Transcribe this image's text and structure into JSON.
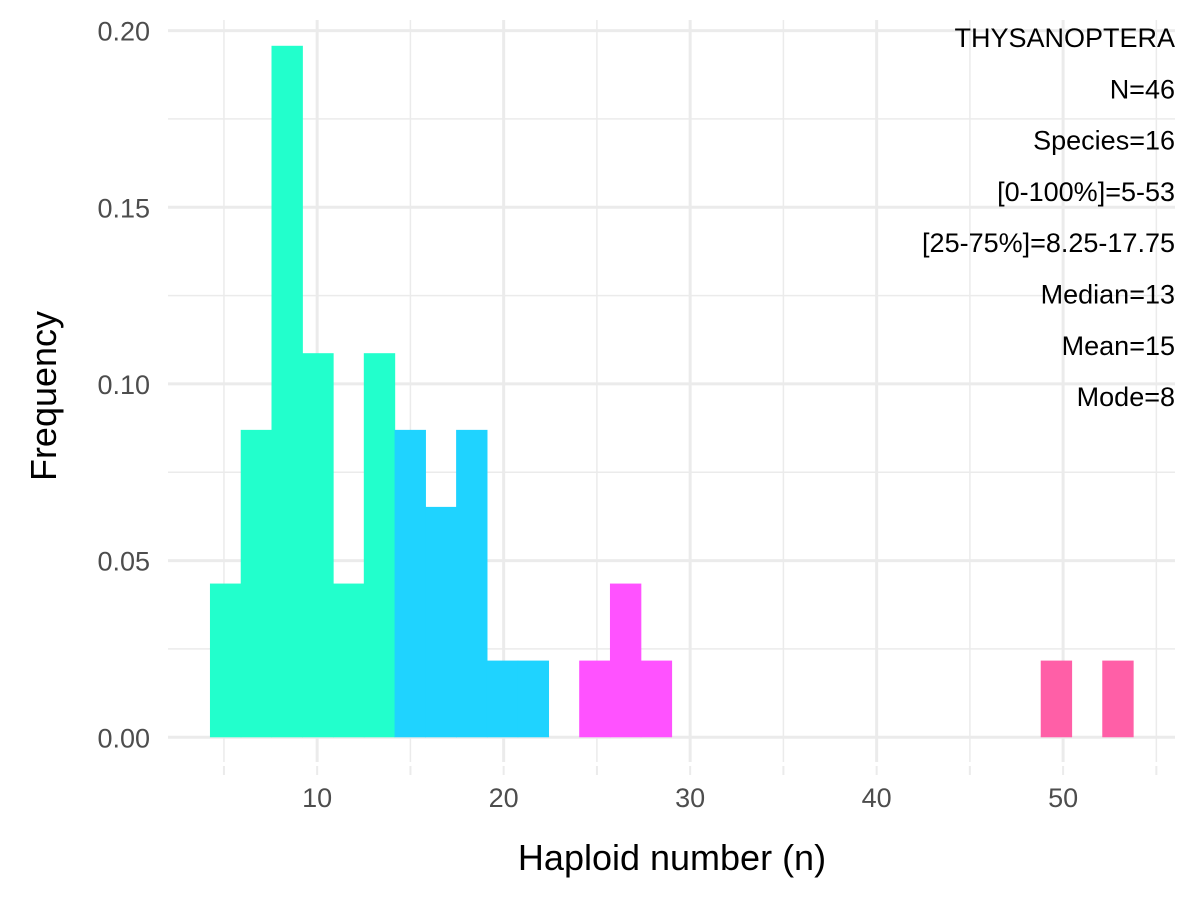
{
  "chart_data": {
    "type": "bar",
    "subtype": "histogram",
    "title": "",
    "xlabel": "Haploid number (n)",
    "ylabel": "Frequency",
    "xlim": [
      2,
      56
    ],
    "ylim": [
      -0.007,
      0.203
    ],
    "x_ticks": [
      10,
      20,
      30,
      40,
      50
    ],
    "y_ticks": [
      0.0,
      0.05,
      0.1,
      0.15,
      0.2
    ],
    "y_tick_labels": [
      "0.00",
      "0.05",
      "0.10",
      "0.15",
      "0.20"
    ],
    "grid": true,
    "bin_width": 1.65,
    "bins": [
      {
        "x_start": 4.25,
        "x_end": 5.9,
        "value": 0.0435,
        "color": "#22ffcc"
      },
      {
        "x_start": 5.9,
        "x_end": 7.55,
        "value": 0.087,
        "color": "#22ffcc"
      },
      {
        "x_start": 7.55,
        "x_end": 9.2,
        "value": 0.1957,
        "color": "#22ffcc"
      },
      {
        "x_start": 9.2,
        "x_end": 10.85,
        "value": 0.1087,
        "color": "#22ffcc"
      },
      {
        "x_start": 10.85,
        "x_end": 12.5,
        "value": 0.0435,
        "color": "#22ffcc"
      },
      {
        "x_start": 12.5,
        "x_end": 14.15,
        "value": 0.1087,
        "color": "#22ffcc"
      },
      {
        "x_start": 14.15,
        "x_end": 15.8,
        "value": 0.087,
        "color": "#1fd3ff"
      },
      {
        "x_start": 15.8,
        "x_end": 17.45,
        "value": 0.0652,
        "color": "#1fd3ff"
      },
      {
        "x_start": 17.45,
        "x_end": 19.1,
        "value": 0.087,
        "color": "#1fd3ff"
      },
      {
        "x_start": 19.1,
        "x_end": 20.75,
        "value": 0.0217,
        "color": "#1fd3ff"
      },
      {
        "x_start": 20.75,
        "x_end": 22.4,
        "value": 0.0217,
        "color": "#1fd3ff"
      },
      {
        "x_start": 24.05,
        "x_end": 25.7,
        "value": 0.0217,
        "color": "#ff52ff"
      },
      {
        "x_start": 25.7,
        "x_end": 27.35,
        "value": 0.0435,
        "color": "#ff52ff"
      },
      {
        "x_start": 27.35,
        "x_end": 29.0,
        "value": 0.0217,
        "color": "#ff52ff"
      },
      {
        "x_start": 48.8,
        "x_end": 50.45,
        "value": 0.0217,
        "color": "#ff5fa7"
      },
      {
        "x_start": 52.1,
        "x_end": 53.75,
        "value": 0.0217,
        "color": "#ff5fa7"
      }
    ],
    "annotations": [
      "THYSANOPTERA",
      "N=46",
      "Species=16",
      "[0-100%]=5-53",
      "[25-75%]=8.25-17.75",
      "Median=13",
      "Mean=15",
      "Mode=8"
    ]
  }
}
